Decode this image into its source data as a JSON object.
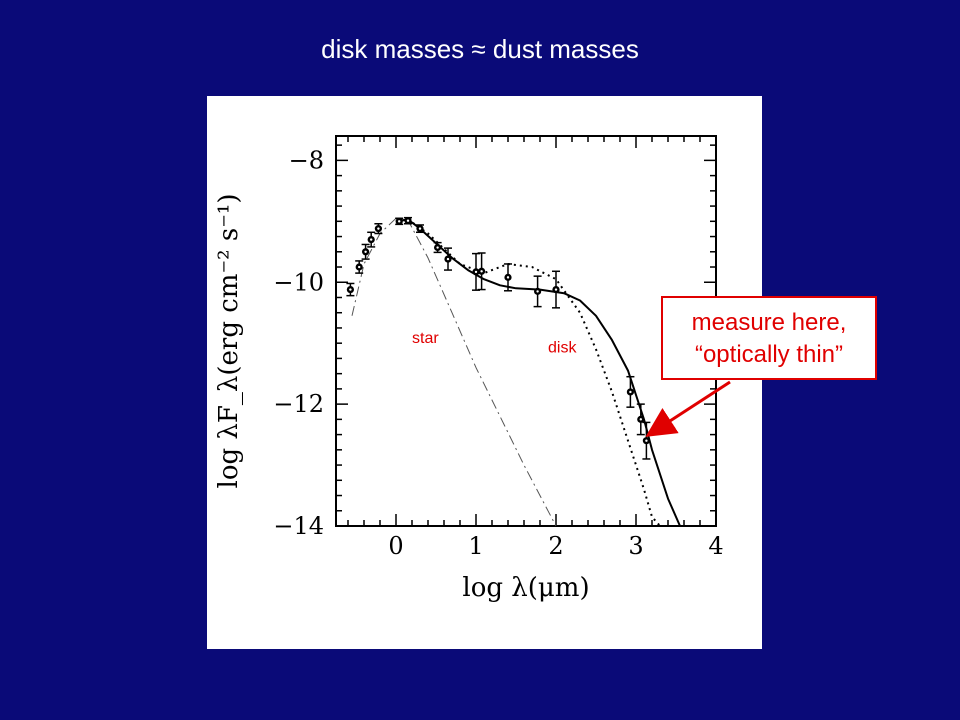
{
  "slide": {
    "title": "disk masses ≈ dust masses",
    "callout_line1": "measure here,",
    "callout_line2": "“optically thin”",
    "accent_color": "#e00000",
    "background_color": "#0a0a78"
  },
  "chart_data": {
    "type": "scatter",
    "xlabel": "log λ(μm)",
    "ylabel": "log λF_λ(erg cm⁻² s⁻¹)",
    "xlim": [
      -0.75,
      4.0
    ],
    "ylim": [
      -14.0,
      -7.6
    ],
    "x_ticks": [
      0,
      1,
      2,
      3,
      4
    ],
    "x_tick_labels": [
      "0",
      "1",
      "2",
      "3",
      "4"
    ],
    "y_ticks": [
      -8,
      -10,
      -12,
      -14
    ],
    "y_tick_labels": [
      "−8",
      "−10",
      "−12",
      "−14"
    ],
    "grid": false,
    "annotations": [
      {
        "text": "star",
        "x": 0.2,
        "y": -11.0
      },
      {
        "text": "disk",
        "x": 1.9,
        "y": -11.15
      }
    ],
    "points": [
      {
        "x": -0.57,
        "y": -10.12,
        "err": 0.1
      },
      {
        "x": -0.46,
        "y": -9.75,
        "err": 0.1
      },
      {
        "x": -0.38,
        "y": -9.5,
        "err": 0.12
      },
      {
        "x": -0.31,
        "y": -9.3,
        "err": 0.12
      },
      {
        "x": -0.22,
        "y": -9.12,
        "err": 0.08
      },
      {
        "x": 0.04,
        "y": -9.0,
        "err": 0.05
      },
      {
        "x": 0.15,
        "y": -8.99,
        "err": 0.05
      },
      {
        "x": 0.3,
        "y": -9.12,
        "err": 0.06
      },
      {
        "x": 0.52,
        "y": -9.43,
        "err": 0.08
      },
      {
        "x": 0.65,
        "y": -9.62,
        "err": 0.18
      },
      {
        "x": 1.0,
        "y": -9.83,
        "err": 0.3
      },
      {
        "x": 1.07,
        "y": -9.82,
        "err": 0.3
      },
      {
        "x": 1.4,
        "y": -9.92,
        "err": 0.22
      },
      {
        "x": 1.77,
        "y": -10.15,
        "err": 0.25
      },
      {
        "x": 2.0,
        "y": -10.12,
        "err": 0.3
      },
      {
        "x": 2.93,
        "y": -11.8,
        "err": 0.25
      },
      {
        "x": 3.06,
        "y": -12.25,
        "err": 0.25
      },
      {
        "x": 3.13,
        "y": -12.6,
        "err": 0.3
      }
    ],
    "series": [
      {
        "style": "solid",
        "x": [
          0.0,
          0.15,
          0.3,
          0.5,
          0.7,
          0.9,
          1.1,
          1.3,
          1.5,
          1.8,
          2.1,
          2.3,
          2.5,
          2.7,
          2.9,
          3.0,
          3.1,
          3.2,
          3.4,
          3.55
        ],
        "y": [
          -9.0,
          -8.97,
          -9.12,
          -9.36,
          -9.6,
          -9.8,
          -9.95,
          -10.05,
          -10.1,
          -10.12,
          -10.18,
          -10.3,
          -10.55,
          -10.95,
          -11.45,
          -11.85,
          -12.25,
          -12.75,
          -13.55,
          -14.0
        ]
      },
      {
        "style": "dotted",
        "x": [
          0.0,
          0.15,
          0.4,
          0.8,
          1.1,
          1.4,
          1.7,
          2.0,
          2.3,
          2.5,
          2.7,
          2.9,
          3.1,
          3.2,
          3.3
        ],
        "y": [
          -9.0,
          -8.97,
          -9.2,
          -9.7,
          -9.85,
          -9.7,
          -9.75,
          -9.95,
          -10.5,
          -11.1,
          -11.8,
          -12.6,
          -13.4,
          -13.85,
          -14.0
        ]
      },
      {
        "style": "dashdot",
        "x": [
          -0.55,
          -0.4,
          -0.2,
          0.0,
          0.15,
          0.4,
          0.7,
          1.0,
          1.3,
          1.6,
          1.9,
          2.0
        ],
        "y": [
          -10.55,
          -9.7,
          -9.2,
          -8.95,
          -8.98,
          -9.6,
          -10.5,
          -11.4,
          -12.2,
          -13.0,
          -13.75,
          -14.0
        ]
      }
    ],
    "arrow_target": {
      "x": 3.12,
      "y": -12.6
    }
  }
}
